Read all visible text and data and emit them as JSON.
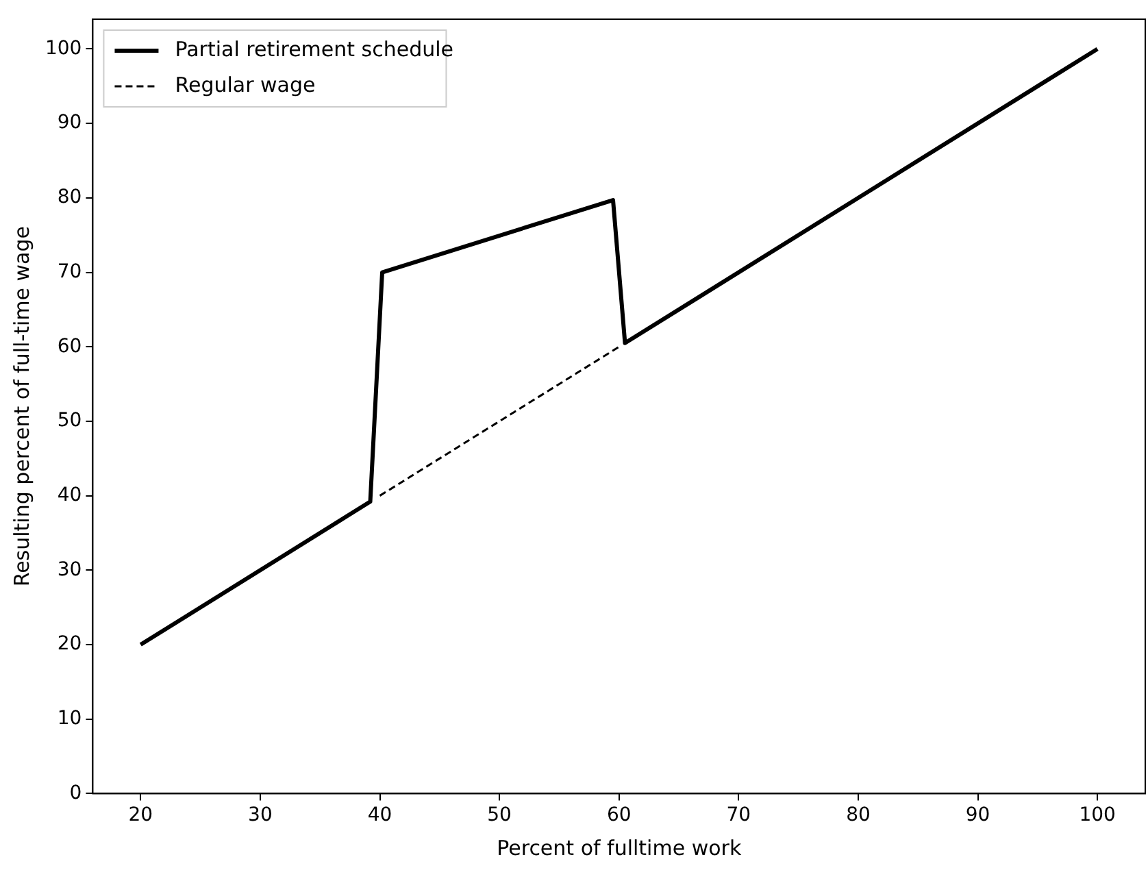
{
  "chart_data": {
    "type": "line",
    "xlabel": "Percent of fulltime work",
    "ylabel": "Resulting percent of full-time wage",
    "xlim": [
      16,
      104
    ],
    "xticks": [
      20,
      30,
      40,
      50,
      60,
      70,
      80,
      90,
      100
    ],
    "ylim": [
      0,
      104
    ],
    "yticks": [
      0,
      10,
      20,
      30,
      40,
      50,
      60,
      70,
      80,
      90,
      100
    ],
    "grid": false,
    "legend": "top left",
    "marker": "none",
    "series": [
      {
        "name": "Partial retirement schedule",
        "color": "#000000",
        "line_style": "solid",
        "x": [
          20,
          39.2,
          40.2,
          59.5,
          60.5,
          100
        ],
        "values": [
          20,
          39.2,
          70,
          79.7,
          60.5,
          100
        ]
      },
      {
        "name": "Regular wage",
        "color": "#000000",
        "line_style": "dashed",
        "x": [
          40,
          60
        ],
        "values": [
          40,
          60
        ]
      }
    ]
  }
}
